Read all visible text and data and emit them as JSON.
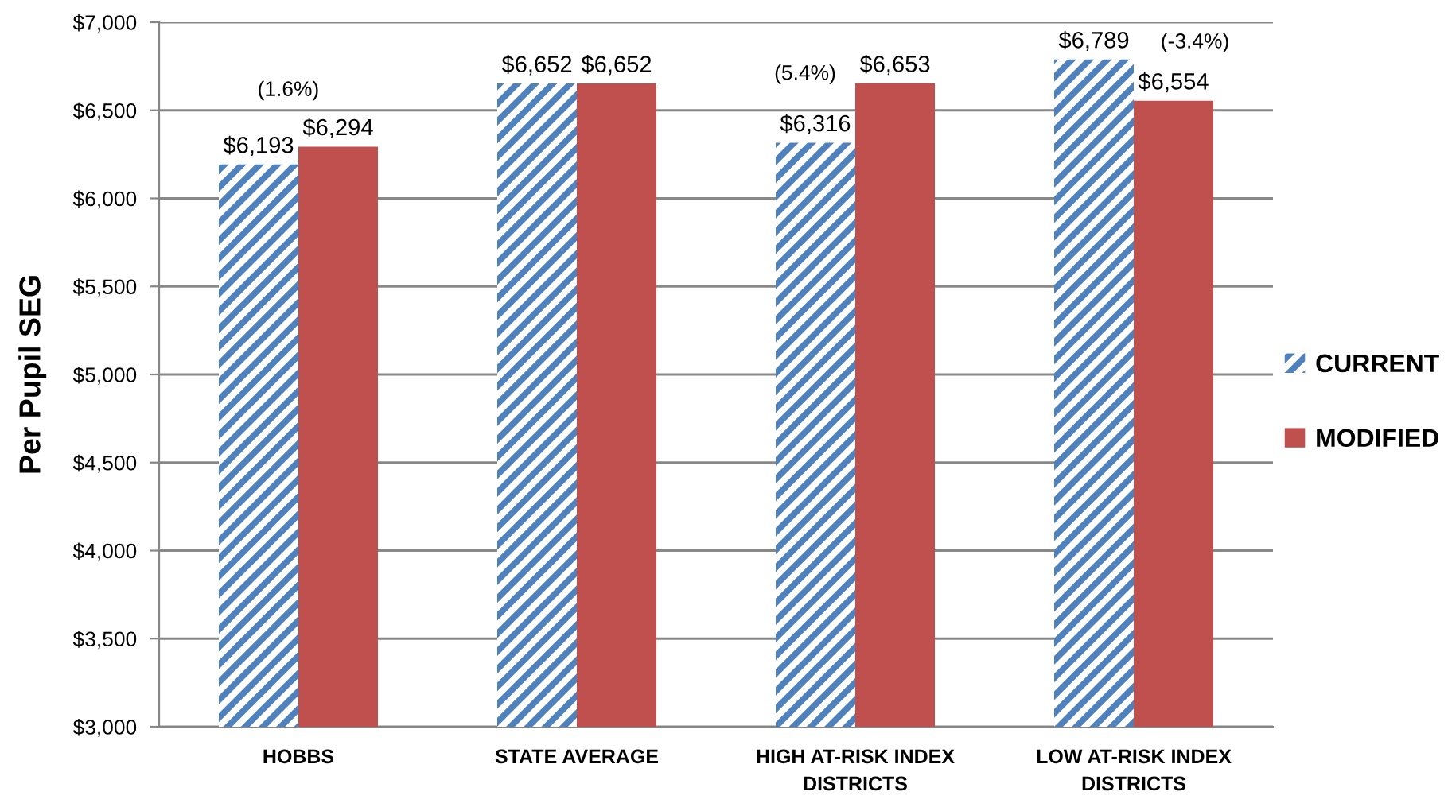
{
  "chart_data": {
    "type": "bar",
    "categories": [
      "HOBBS",
      "STATE AVERAGE",
      "HIGH AT-RISK INDEX\nDISTRICTS",
      "LOW AT-RISK INDEX\nDISTRICTS"
    ],
    "series": [
      {
        "name": "CURRENT",
        "color": "#4f81bd",
        "values": [
          6193,
          6652,
          6316,
          6789
        ],
        "value_labels": [
          "$6,193",
          "$6,652",
          "$6,316",
          "$6,789"
        ]
      },
      {
        "name": "MODIFIED",
        "color": "#c0504d",
        "values": [
          6294,
          6652,
          6653,
          6554
        ],
        "value_labels": [
          "$6,294",
          "$6,652",
          "$6,653",
          "$6,554"
        ]
      }
    ],
    "ylabel": "Per Pupil SEG",
    "ylim": [
      3000,
      7000
    ],
    "yticks": [
      {
        "value": 3000,
        "label": "$3,000"
      },
      {
        "value": 3500,
        "label": "$3,500"
      },
      {
        "value": 4000,
        "label": "$4,000"
      },
      {
        "value": 4500,
        "label": "$4,500"
      },
      {
        "value": 5000,
        "label": "$5,000"
      },
      {
        "value": 5500,
        "label": "$5,500"
      },
      {
        "value": 6000,
        "label": "$6,000"
      },
      {
        "value": 6500,
        "label": "$6,500"
      },
      {
        "value": 7000,
        "label": "$7,000"
      }
    ],
    "annotations": [
      "(1.6%)",
      "(5.4%)",
      "(-3.4%)"
    ],
    "grid": "y",
    "legend": "right"
  }
}
